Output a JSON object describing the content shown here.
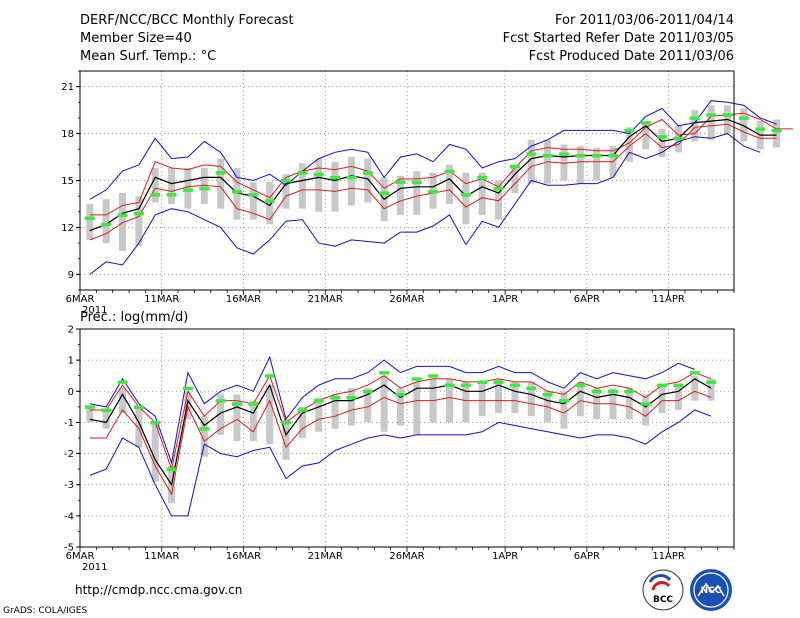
{
  "header": {
    "left": [
      "DERF/NCC/BCC Monthly Forecast",
      "Member Size=40",
      "Mean Surf. Temp.: °C"
    ],
    "right": [
      "For 2011/03/06-2011/04/14",
      "Fcst Started Refer Date 2011/03/05",
      "Fcst Produced Date 2011/03/06"
    ]
  },
  "footer": {
    "url": "http://cmdp.ncc.cma.gov.cn",
    "credit": "GrADS: COLA/IGES",
    "logo_bcc": "BCC",
    "logo_ncc": "NCC"
  },
  "colors": {
    "ensemble_mean": "#000000",
    "spread_bounds": "#d81e1e",
    "extreme_bounds": "#1010c8",
    "member_range_bar": "#c8c8c8",
    "median_marker": "#3ee93e",
    "grid": "#888888"
  },
  "chart_data": [
    {
      "type": "line",
      "title": "Mean Surf. Temp.: °C",
      "xlabel": "",
      "ylabel": "°C",
      "ylim": [
        8,
        22
      ],
      "yticks": [
        9,
        12,
        15,
        18,
        21
      ],
      "xlim": [
        0,
        40
      ],
      "xtick_days": [
        0,
        5,
        10,
        15,
        20,
        26,
        31,
        36
      ],
      "xtick_labels": [
        "6MAR",
        "11MAR",
        "16MAR",
        "21MAR",
        "26MAR",
        "1APR",
        "6APR",
        "11APR"
      ],
      "year_label": "2011",
      "legend_position": "none",
      "series": [
        {
          "name": "extreme-max",
          "color": "#1010c8",
          "values": [
            13.8,
            14.4,
            15.6,
            16.0,
            17.7,
            16.4,
            16.5,
            17.5,
            16.8,
            15.2,
            15.0,
            15.4,
            14.7,
            15.6,
            16.4,
            16.8,
            17.0,
            16.8,
            15.2,
            16.5,
            16.7,
            16.2,
            17.3,
            17.0,
            15.8,
            16.2,
            16.4,
            17.2,
            17.6,
            18.2,
            18.2,
            18.2,
            18.2,
            18.0,
            19.1,
            19.6,
            18.5,
            18.7,
            20.1,
            20.0,
            19.8,
            19.0,
            18.6
          ]
        },
        {
          "name": "spread-upper",
          "color": "#d81e1e",
          "values": [
            12.8,
            12.8,
            13.4,
            13.6,
            16.2,
            15.8,
            15.7,
            16.0,
            15.9,
            14.9,
            14.4,
            13.9,
            15.2,
            15.6,
            15.8,
            15.7,
            15.9,
            15.6,
            14.5,
            15.1,
            15.1,
            15.2,
            15.6,
            14.8,
            15.1,
            14.6,
            15.8,
            16.9,
            17.1,
            17.0,
            17.0,
            16.9,
            16.9,
            17.4,
            18.4,
            18.9,
            17.9,
            18.0,
            19.1,
            19.2,
            19.3,
            18.9,
            18.3,
            18.3
          ]
        },
        {
          "name": "ensemble-mean",
          "color": "#000000",
          "values": [
            11.8,
            12.2,
            12.9,
            13.2,
            15.2,
            14.8,
            15.0,
            15.2,
            15.2,
            14.2,
            14.0,
            13.4,
            14.8,
            15.0,
            15.2,
            15.0,
            15.3,
            15.1,
            13.8,
            14.5,
            14.6,
            14.6,
            15.1,
            14.0,
            14.6,
            14.2,
            15.4,
            16.4,
            16.6,
            16.5,
            16.6,
            16.6,
            16.6,
            17.8,
            18.5,
            17.5,
            17.7,
            18.7,
            18.8,
            18.9,
            18.5,
            17.9,
            17.9
          ]
        },
        {
          "name": "spread-lower",
          "color": "#d81e1e",
          "values": [
            11.2,
            11.6,
            12.3,
            12.7,
            14.5,
            14.3,
            14.6,
            14.7,
            14.6,
            13.2,
            12.9,
            12.5,
            14.0,
            14.4,
            14.4,
            14.3,
            14.5,
            14.4,
            13.2,
            13.7,
            14.0,
            14.2,
            14.4,
            13.3,
            13.9,
            13.7,
            14.8,
            15.9,
            16.2,
            16.1,
            16.2,
            16.2,
            16.2,
            17.2,
            18.0,
            17.1,
            17.3,
            18.4,
            18.5,
            18.6,
            18.1,
            17.7,
            17.7
          ]
        },
        {
          "name": "extreme-min",
          "color": "#1010c8",
          "values": [
            9.0,
            9.8,
            9.6,
            11.0,
            12.8,
            13.2,
            13.0,
            12.5,
            12.0,
            10.7,
            10.3,
            11.2,
            12.4,
            12.5,
            11.0,
            10.8,
            11.2,
            11.1,
            11.0,
            11.7,
            11.7,
            12.1,
            12.8,
            10.9,
            12.4,
            12.0,
            13.5,
            15.0,
            14.7,
            14.7,
            14.8,
            14.8,
            15.2,
            16.8,
            16.4,
            16.8,
            17.5,
            17.8,
            17.7,
            18.0,
            17.2,
            16.8
          ]
        }
      ],
      "member_range": {
        "lower": [
          11.2,
          11.0,
          10.5,
          10.8,
          13.6,
          13.5,
          13.2,
          13.5,
          13.2,
          12.5,
          12.5,
          12.2,
          13.2,
          13.2,
          13.0,
          13.0,
          13.4,
          13.6,
          12.4,
          12.8,
          12.8,
          13.2,
          13.5,
          12.2,
          12.8,
          12.5,
          14.2,
          14.8,
          14.8,
          15.0,
          14.8,
          15.0,
          15.2,
          16.2,
          17.0,
          16.5,
          16.8,
          17.5,
          17.6,
          18.0,
          17.5,
          17.0,
          17.1
        ],
        "upper": [
          13.5,
          13.8,
          14.2,
          14.0,
          15.8,
          15.8,
          15.8,
          15.8,
          16.4,
          15.8,
          14.9,
          14.9,
          15.4,
          16.1,
          16.4,
          16.2,
          16.5,
          16.4,
          15.2,
          15.3,
          15.6,
          15.5,
          16.0,
          15.5,
          15.5,
          15.0,
          16.0,
          17.6,
          17.6,
          17.3,
          17.2,
          17.1,
          17.2,
          18.4,
          18.8,
          18.3,
          18.5,
          19.5,
          19.8,
          19.8,
          19.6,
          18.8,
          18.9
        ]
      },
      "median": [
        12.6,
        12.2,
        12.8,
        12.9,
        14.1,
        14.1,
        14.4,
        14.5,
        15.5,
        14.3,
        14.1,
        13.7,
        15.0,
        15.5,
        15.4,
        15.2,
        15.2,
        15.5,
        14.2,
        14.9,
        14.9,
        14.3,
        15.6,
        14.1,
        15.2,
        14.5,
        15.9,
        16.7,
        16.6,
        16.7,
        16.6,
        16.6,
        16.6,
        18.2,
        18.7,
        17.8,
        17.7,
        19.0,
        19.2,
        19.2,
        19.0,
        18.3,
        18.2
      ]
    },
    {
      "type": "line",
      "title": "Prec.: log(mm/d)",
      "xlabel": "",
      "ylabel": "log(mm/d)",
      "ylim": [
        -5,
        2
      ],
      "yticks": [
        -5,
        -4,
        -3,
        -2,
        -1,
        0,
        1,
        2
      ],
      "xlim": [
        0,
        40
      ],
      "xtick_days": [
        0,
        5,
        10,
        15,
        20,
        26,
        31,
        36
      ],
      "xtick_labels": [
        "6MAR",
        "11MAR",
        "16MAR",
        "21MAR",
        "26MAR",
        "1APR",
        "6APR",
        "11APR"
      ],
      "year_label": "2011",
      "legend_position": "none",
      "series": [
        {
          "name": "extreme-max",
          "color": "#1010c8",
          "values": [
            -0.4,
            -0.5,
            0.4,
            -0.4,
            -0.8,
            -2.3,
            0.6,
            -0.4,
            0.0,
            0.2,
            0.0,
            1.1,
            -0.9,
            -0.2,
            0.2,
            0.4,
            0.4,
            0.6,
            1.0,
            0.6,
            0.8,
            0.8,
            0.8,
            0.6,
            0.6,
            0.8,
            0.6,
            0.6,
            0.3,
            0.1,
            0.6,
            0.4,
            0.6,
            0.5,
            0.4,
            0.6,
            0.9,
            0.7
          ]
        },
        {
          "name": "spread-upper",
          "color": "#d81e1e",
          "values": [
            -0.6,
            -0.6,
            0.2,
            -0.5,
            -1.0,
            -2.5,
            0.0,
            -0.8,
            -0.3,
            -0.3,
            -0.4,
            0.5,
            -1.0,
            -0.6,
            -0.3,
            -0.1,
            0.0,
            0.2,
            0.5,
            0.1,
            0.3,
            0.4,
            0.4,
            0.3,
            0.3,
            0.4,
            0.3,
            0.3,
            0.0,
            -0.1,
            0.3,
            0.1,
            0.2,
            0.1,
            -0.2,
            0.2,
            0.3,
            0.6,
            0.4
          ]
        },
        {
          "name": "ensemble-mean",
          "color": "#000000",
          "values": [
            -0.9,
            -1.0,
            -0.1,
            -1.0,
            -2.2,
            -3.0,
            -0.3,
            -1.1,
            -0.7,
            -0.5,
            -0.7,
            0.2,
            -1.4,
            -0.7,
            -0.5,
            -0.3,
            -0.3,
            -0.1,
            0.2,
            -0.2,
            0.1,
            0.1,
            0.2,
            0.0,
            0.0,
            0.2,
            0.0,
            -0.1,
            -0.3,
            -0.4,
            0.0,
            -0.2,
            -0.1,
            -0.2,
            -0.5,
            -0.1,
            0.0,
            0.4,
            0.1
          ]
        },
        {
          "name": "spread-lower",
          "color": "#d81e1e",
          "values": [
            -1.5,
            -1.5,
            -0.6,
            -1.2,
            -2.4,
            -3.3,
            -0.5,
            -1.6,
            -1.2,
            -0.9,
            -1.3,
            -0.3,
            -1.8,
            -1.2,
            -0.9,
            -0.8,
            -0.6,
            -0.5,
            -0.2,
            -0.4,
            -0.3,
            -0.3,
            -0.2,
            -0.3,
            -0.3,
            -0.3,
            -0.3,
            -0.4,
            -0.5,
            -0.7,
            -0.3,
            -0.4,
            -0.4,
            -0.5,
            -0.8,
            -0.3,
            -0.3,
            0.0,
            -0.2
          ]
        },
        {
          "name": "extreme-min",
          "color": "#1010c8",
          "values": [
            -2.7,
            -2.5,
            -1.5,
            -1.8,
            -3.0,
            -4.0,
            -4.0,
            -1.7,
            -2.0,
            -2.1,
            -1.9,
            -1.8,
            -2.8,
            -2.4,
            -2.3,
            -1.9,
            -1.7,
            -1.5,
            -1.4,
            -1.5,
            -1.4,
            -1.4,
            -1.4,
            -1.4,
            -1.3,
            -1.0,
            -1.1,
            -1.2,
            -1.3,
            -1.4,
            -1.5,
            -1.4,
            -1.4,
            -1.5,
            -1.7,
            -1.3,
            -1.0,
            -0.6,
            -0.8
          ]
        }
      ],
      "member_range": {
        "lower": [
          -1.0,
          -1.2,
          -0.7,
          -1.8,
          -2.9,
          -3.6,
          -0.9,
          -2.1,
          -1.4,
          -1.6,
          -1.6,
          -1.7,
          -2.2,
          -1.5,
          -1.3,
          -1.2,
          -1.1,
          -1.0,
          -1.3,
          -1.1,
          -1.4,
          -1.0,
          -1.0,
          -1.0,
          -0.8,
          -0.7,
          -0.7,
          -0.8,
          -1.0,
          -1.2,
          -0.8,
          -0.9,
          -0.9,
          -0.9,
          -1.1,
          -0.7,
          -0.6,
          -0.3,
          -0.3
        ],
        "upper": [
          -0.5,
          -0.6,
          0.1,
          -0.5,
          -1.0,
          -2.4,
          0.0,
          -0.8,
          -0.1,
          -0.1,
          -0.3,
          0.2,
          -0.9,
          -0.5,
          -0.2,
          -0.1,
          0.1,
          0.1,
          0.5,
          0.1,
          0.3,
          0.4,
          0.4,
          0.3,
          0.3,
          0.4,
          0.3,
          0.3,
          0.0,
          0.0,
          0.3,
          0.1,
          0.1,
          0.1,
          -0.1,
          0.2,
          0.2,
          0.5,
          0.4
        ]
      },
      "median": [
        -0.5,
        -0.6,
        0.3,
        -0.5,
        -1.0,
        -2.5,
        0.1,
        -1.2,
        -0.3,
        -0.4,
        -0.4,
        0.5,
        -1.0,
        -0.6,
        -0.3,
        -0.2,
        -0.2,
        0.0,
        0.6,
        -0.1,
        0.4,
        0.5,
        0.2,
        0.2,
        0.3,
        0.3,
        0.2,
        0.1,
        -0.1,
        -0.3,
        0.2,
        0.0,
        0.0,
        0.0,
        -0.4,
        0.2,
        0.2,
        0.6,
        0.3
      ]
    }
  ]
}
